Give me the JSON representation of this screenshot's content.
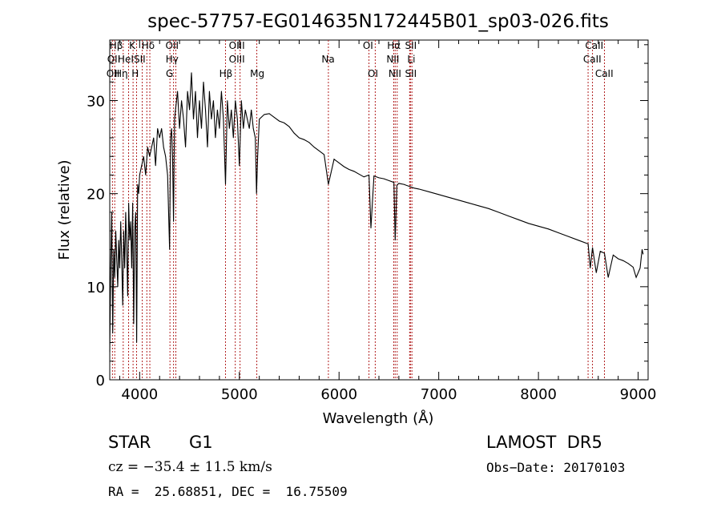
{
  "chart_data": {
    "type": "line",
    "title": "spec-57757-EG014635N172445B01_sp03-026.fits",
    "xlabel": "Wavelength (Å)",
    "ylabel": "Flux (relative)",
    "xlim": [
      3700,
      9100
    ],
    "ylim": [
      0,
      36.5
    ],
    "xticks": [
      4000,
      5000,
      6000,
      7000,
      8000,
      9000
    ],
    "yticks": [
      0,
      10,
      20,
      30
    ],
    "line_color": "#000000",
    "marker_color": "#b22222",
    "grid": false,
    "series": [
      {
        "x": [
          3700,
          3710,
          3720,
          3730,
          3740,
          3750,
          3760,
          3770,
          3780,
          3790,
          3800,
          3810,
          3820,
          3830,
          3840,
          3850,
          3860,
          3870,
          3880,
          3890,
          3900,
          3910,
          3920,
          3930,
          3940,
          3950,
          3960,
          3970,
          3980,
          3990,
          4000,
          4020,
          4040,
          4060,
          4080,
          4100,
          4120,
          4140,
          4160,
          4180,
          4200,
          4220,
          4240,
          4260,
          4280,
          4300,
          4310,
          4320,
          4330,
          4340,
          4350,
          4360,
          4380,
          4400,
          4420,
          4440,
          4460,
          4480,
          4500,
          4520,
          4540,
          4560,
          4580,
          4600,
          4620,
          4640,
          4660,
          4680,
          4700,
          4720,
          4740,
          4760,
          4780,
          4800,
          4820,
          4840,
          4861,
          4880,
          4900,
          4920,
          4940,
          4960,
          4980,
          5000,
          5020,
          5040,
          5060,
          5080,
          5100,
          5120,
          5140,
          5160,
          5172,
          5183,
          5200,
          5250,
          5300,
          5350,
          5400,
          5450,
          5500,
          5550,
          5600,
          5650,
          5700,
          5750,
          5800,
          5850,
          5893,
          5950,
          6000,
          6050,
          6100,
          6150,
          6200,
          6250,
          6300,
          6320,
          6350,
          6400,
          6450,
          6500,
          6550,
          6563,
          6580,
          6600,
          6650,
          6700,
          6750,
          6800,
          6900,
          7000,
          7100,
          7200,
          7300,
          7400,
          7500,
          7600,
          7700,
          7800,
          7900,
          8000,
          8100,
          8200,
          8300,
          8400,
          8498,
          8520,
          8542,
          8580,
          8620,
          8662,
          8700,
          8750,
          8800,
          8850,
          8900,
          8950,
          8980,
          9000,
          9020,
          9040,
          9050
        ],
        "y": [
          3,
          12,
          18,
          5,
          14,
          11,
          16,
          13,
          10,
          15,
          12,
          17,
          13,
          8,
          16,
          12,
          18,
          14,
          9,
          19,
          15,
          17,
          12,
          19,
          6,
          16,
          18,
          4,
          21,
          20,
          22,
          23,
          24,
          22,
          25,
          24,
          25,
          26,
          23,
          27,
          26,
          27,
          25,
          24,
          22,
          14,
          26,
          27,
          24,
          17,
          28,
          29,
          31,
          27,
          30,
          28,
          25,
          31,
          29,
          33,
          28,
          31,
          26,
          30,
          27,
          32,
          29,
          25,
          31,
          28,
          30,
          26,
          29,
          27,
          31,
          28,
          21,
          30,
          27,
          29,
          26,
          30,
          28,
          23,
          30,
          27,
          29,
          28,
          27,
          29,
          27,
          26,
          20,
          24,
          28,
          28.5,
          28.6,
          28.2,
          27.8,
          27.6,
          27.2,
          26.5,
          26.0,
          25.8,
          25.5,
          25.0,
          24.6,
          24.2,
          21.0,
          23.7,
          23.3,
          22.9,
          22.6,
          22.4,
          22.1,
          21.8,
          22.0,
          16.3,
          21.9,
          21.7,
          21.6,
          21.4,
          21.2,
          15.0,
          20.9,
          21.1,
          21.0,
          20.8,
          20.6,
          20.5,
          20.2,
          19.9,
          19.6,
          19.3,
          19.0,
          18.7,
          18.4,
          18.0,
          17.6,
          17.2,
          16.8,
          16.5,
          16.2,
          15.8,
          15.4,
          15.0,
          14.6,
          12.0,
          14.2,
          11.5,
          13.8,
          13.6,
          11.0,
          13.4,
          13.0,
          12.8,
          12.5,
          12.1,
          11.0,
          11.5,
          12.0,
          14.0,
          13.5
        ]
      }
    ],
    "lines": [
      {
        "x": 3727,
        "label": "OII"
      },
      {
        "x": 3750,
        "label": "OII"
      },
      {
        "x": 3835,
        "label": "Hη"
      },
      {
        "x": 3889,
        "label": "Hε"
      },
      {
        "x": 3934,
        "label": "K"
      },
      {
        "x": 3969,
        "label": "H"
      },
      {
        "x": 4026,
        "label": "HeI"
      },
      {
        "x": 4072,
        "label": "SII"
      },
      {
        "x": 4102,
        "label": "Hδ"
      },
      {
        "x": 4304,
        "label": "G"
      },
      {
        "x": 4340,
        "label": "Hγ"
      },
      {
        "x": 4363,
        "label": "OIII"
      },
      {
        "x": 4861,
        "label": "Hβ"
      },
      {
        "x": 4959,
        "label": "OIII"
      },
      {
        "x": 5007,
        "label": "OIII"
      },
      {
        "x": 5175,
        "label": "Mg"
      },
      {
        "x": 5893,
        "label": "Na"
      },
      {
        "x": 6300,
        "label": "OI"
      },
      {
        "x": 6363,
        "label": "OI"
      },
      {
        "x": 6548,
        "label": "NII"
      },
      {
        "x": 6563,
        "label": "Hα"
      },
      {
        "x": 6583,
        "label": "NII"
      },
      {
        "x": 6708,
        "label": "Li"
      },
      {
        "x": 6716,
        "label": "SII"
      },
      {
        "x": 6731,
        "label": "SII"
      },
      {
        "x": 8498,
        "label": "CaII"
      },
      {
        "x": 8542,
        "label": "CaII"
      },
      {
        "x": 8662,
        "label": "CaII"
      }
    ],
    "line_labels": [
      {
        "text": "Hβ",
        "x": 3765,
        "row": 0
      },
      {
        "text": "OII",
        "x": 3740,
        "row": 1
      },
      {
        "text": "OII",
        "x": 3732,
        "row": 2
      },
      {
        "text": "Hη",
        "x": 3815,
        "row": 2
      },
      {
        "text": "HeI",
        "x": 3860,
        "row": 1
      },
      {
        "text": "K",
        "x": 3925,
        "row": 0
      },
      {
        "text": "SII",
        "x": 4000,
        "row": 1
      },
      {
        "text": "H",
        "x": 3955,
        "row": 2
      },
      {
        "text": "Hδ",
        "x": 4085,
        "row": 0
      },
      {
        "text": "OII",
        "x": 4325,
        "row": 0
      },
      {
        "text": "Hγ",
        "x": 4325,
        "row": 1
      },
      {
        "text": "G",
        "x": 4300,
        "row": 2
      },
      {
        "text": "Hβ",
        "x": 4865,
        "row": 2
      },
      {
        "text": "OIII",
        "x": 4975,
        "row": 0
      },
      {
        "text": "OIII",
        "x": 4975,
        "row": 1
      },
      {
        "text": "Mg",
        "x": 5180,
        "row": 2
      },
      {
        "text": "Na",
        "x": 5890,
        "row": 1
      },
      {
        "text": "OI",
        "x": 6290,
        "row": 0
      },
      {
        "text": "OI",
        "x": 6340,
        "row": 2
      },
      {
        "text": "Hα",
        "x": 6550,
        "row": 0
      },
      {
        "text": "NII",
        "x": 6540,
        "row": 1
      },
      {
        "text": "NII",
        "x": 6560,
        "row": 2
      },
      {
        "text": "SII",
        "x": 6720,
        "row": 0
      },
      {
        "text": "Li",
        "x": 6725,
        "row": 1
      },
      {
        "text": "SII",
        "x": 6720,
        "row": 2
      },
      {
        "text": "CaII",
        "x": 8560,
        "row": 0
      },
      {
        "text": "CaII",
        "x": 8540,
        "row": 1
      },
      {
        "text": "CaII",
        "x": 8660,
        "row": 2
      }
    ]
  },
  "info": {
    "object_type": "STAR",
    "subclass": "G1",
    "survey": "LAMOST  DR5",
    "cz": "cz = −35.4 ± 11.5 km/s",
    "obs_date": "Obs−Date: 20170103",
    "coords": "RA =  25.68851, DEC =  16.75509"
  }
}
